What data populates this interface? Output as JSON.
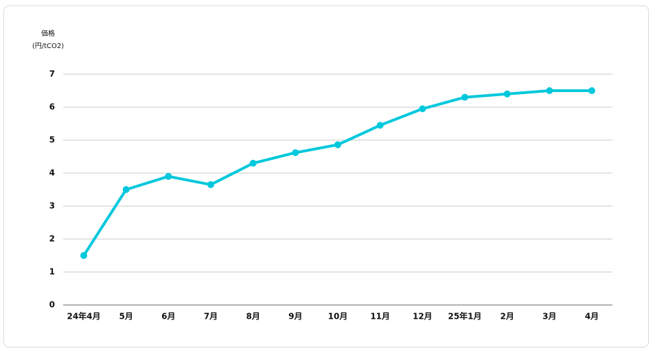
{
  "chart_data": {
    "type": "line",
    "y_label": [
      "価格",
      "(円/tCO2)"
    ],
    "categories": [
      "24年4月",
      "5月",
      "6月",
      "7月",
      "8月",
      "9月",
      "10月",
      "11月",
      "12月",
      "25年1月",
      "2月",
      "3月",
      "4月"
    ],
    "values": [
      1.5,
      3.5,
      3.9,
      3.65,
      4.3,
      4.62,
      4.86,
      5.45,
      5.95,
      6.3,
      6.4,
      6.5,
      6.5
    ],
    "color": "#00c8dc",
    "ylim": [
      0,
      7
    ],
    "yticks": [
      0,
      1,
      2,
      3,
      4,
      5,
      6,
      7
    ],
    "grid": true
  }
}
